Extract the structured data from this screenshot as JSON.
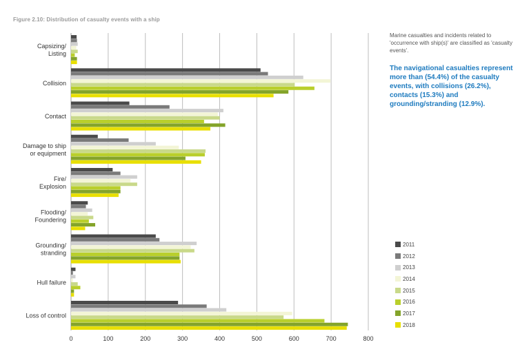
{
  "figure_title": "Figure 2.10: Distribution of casualty events with a ship",
  "note": "Marine casualties and incidents related to 'occurrence with ship(s)' are classified as 'casualty events'.",
  "highlight": "The navigational casualties represent more than (54.4%) of the casualty events, with collisions (26.2%), contacts (15.3%) and grounding/stranding (12.9%).",
  "colors": [
    "#4a4a4a",
    "#7a7a7a",
    "#cfcfcf",
    "#f3f5d6",
    "#c9d98a",
    "#b9cf2c",
    "#84a42a",
    "#e8df00"
  ],
  "chart_data": {
    "type": "bar",
    "orientation": "horizontal",
    "title": "Figure 2.10: Distribution of casualty events with a ship",
    "xlabel": "",
    "ylabel": "",
    "xlim": [
      0,
      800
    ],
    "xticks": [
      0,
      100,
      200,
      300,
      400,
      500,
      600,
      700,
      800
    ],
    "grid": true,
    "legend_position": "bottom-right",
    "categories": [
      [
        "Capsizing/",
        "Listing"
      ],
      [
        "Collision"
      ],
      [
        "Contact"
      ],
      [
        "Damage to ship",
        "or equipment"
      ],
      [
        "Fire/",
        "Explosion"
      ],
      [
        "Flooding/",
        "Foundering"
      ],
      [
        "Grounding/",
        "stranding"
      ],
      [
        "Hull failure"
      ],
      [
        "Loss of control"
      ]
    ],
    "series": [
      {
        "name": "2011",
        "values": [
          15,
          510,
          157,
          72,
          112,
          45,
          228,
          12,
          288
        ]
      },
      {
        "name": "2012",
        "values": [
          16,
          530,
          265,
          155,
          133,
          40,
          238,
          5,
          365
        ]
      },
      {
        "name": "2013",
        "values": [
          18,
          625,
          410,
          228,
          178,
          57,
          338,
          12,
          418
        ]
      },
      {
        "name": "2014",
        "values": [
          14,
          698,
          395,
          290,
          160,
          45,
          322,
          5,
          595
        ]
      },
      {
        "name": "2015",
        "values": [
          18,
          602,
          400,
          362,
          178,
          60,
          332,
          18,
          572
        ]
      },
      {
        "name": "2016",
        "values": [
          10,
          655,
          358,
          360,
          133,
          48,
          292,
          25,
          682
        ]
      },
      {
        "name": "2017",
        "values": [
          16,
          585,
          415,
          308,
          133,
          65,
          292,
          8,
          745
        ]
      },
      {
        "name": "2018",
        "values": [
          16,
          545,
          375,
          350,
          128,
          38,
          295,
          8,
          742
        ]
      }
    ]
  }
}
